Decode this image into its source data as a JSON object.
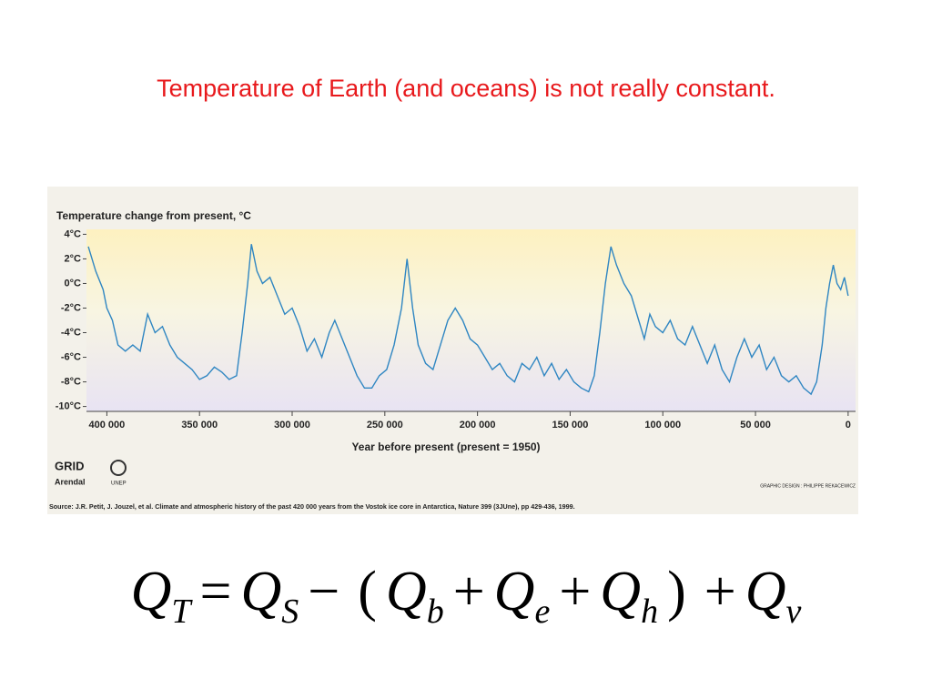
{
  "slide_title": "Temperature of Earth (and oceans) is not really constant.",
  "chart_data": {
    "type": "line",
    "y_axis_title": "Temperature change from present, °C",
    "x_axis_title": "Year before present (present = 1950)",
    "x": [
      410000,
      406000,
      402000,
      400000,
      397000,
      394000,
      390000,
      386000,
      382000,
      378000,
      374000,
      370000,
      366000,
      362000,
      358000,
      354000,
      350000,
      346000,
      342000,
      338000,
      334000,
      330000,
      327000,
      324000,
      322000,
      319000,
      316000,
      312000,
      308000,
      304000,
      300000,
      296000,
      292000,
      288000,
      284000,
      280000,
      277000,
      273000,
      269000,
      265000,
      261000,
      257000,
      253000,
      249000,
      245000,
      241000,
      238000,
      235000,
      232000,
      228000,
      224000,
      220000,
      216000,
      212000,
      208000,
      204000,
      200000,
      196000,
      192000,
      188000,
      184000,
      180000,
      176000,
      172000,
      168000,
      164000,
      160000,
      156000,
      152000,
      148000,
      144000,
      140000,
      137000,
      134000,
      131000,
      128000,
      125000,
      121000,
      117000,
      113000,
      110000,
      107000,
      104000,
      100000,
      96000,
      92000,
      88000,
      84000,
      80000,
      76000,
      72000,
      68000,
      64000,
      60000,
      56000,
      52000,
      48000,
      44000,
      40000,
      36000,
      32000,
      28000,
      24000,
      20000,
      17000,
      14000,
      12000,
      10000,
      8000,
      6000,
      4000,
      2000,
      0
    ],
    "series": [
      {
        "name": "Temperature change",
        "color": "#2f86c2",
        "values": [
          3,
          1,
          -0.5,
          -2,
          -3,
          -5,
          -5.5,
          -5,
          -5.5,
          -2.5,
          -4,
          -3.5,
          -5,
          -6,
          -6.5,
          -7,
          -7.8,
          -7.5,
          -6.8,
          -7.2,
          -7.8,
          -7.5,
          -4,
          0,
          3.2,
          1,
          0,
          0.5,
          -1,
          -2.5,
          -2,
          -3.5,
          -5.5,
          -4.5,
          -6,
          -4,
          -3,
          -4.5,
          -6,
          -7.5,
          -8.5,
          -8.5,
          -7.5,
          -7,
          -5,
          -2,
          2,
          -2,
          -5,
          -6.5,
          -7,
          -5,
          -3,
          -2,
          -3,
          -4.5,
          -5,
          -6,
          -7,
          -6.5,
          -7.5,
          -8,
          -6.5,
          -7,
          -6,
          -7.5,
          -6.5,
          -7.8,
          -7,
          -8,
          -8.5,
          -8.8,
          -7.5,
          -4,
          0,
          3,
          1.5,
          0,
          -1,
          -3,
          -4.5,
          -2.5,
          -3.5,
          -4,
          -3,
          -4.5,
          -5,
          -3.5,
          -5,
          -6.5,
          -5,
          -7,
          -8,
          -6,
          -4.5,
          -6,
          -5,
          -7,
          -6,
          -7.5,
          -8,
          -7.5,
          -8.5,
          -9,
          -8,
          -5,
          -2,
          0,
          1.5,
          0,
          -0.5,
          0.5,
          -1
        ]
      }
    ],
    "xlim": [
      411000,
      -4000
    ],
    "ylim": [
      -10.4,
      4.4
    ],
    "xticks": [
      {
        "value": 400000,
        "label": "400 000"
      },
      {
        "value": 350000,
        "label": "350 000"
      },
      {
        "value": 300000,
        "label": "300 000"
      },
      {
        "value": 250000,
        "label": "250 000"
      },
      {
        "value": 200000,
        "label": "200 000"
      },
      {
        "value": 150000,
        "label": "150 000"
      },
      {
        "value": 100000,
        "label": "100 000"
      },
      {
        "value": 50000,
        "label": "50 000"
      },
      0
    ],
    "yticks": [
      {
        "value": 4,
        "label": "4°C"
      },
      {
        "value": 2,
        "label": "2°C"
      },
      {
        "value": 0,
        "label": "0°C"
      },
      {
        "value": -2,
        "label": "-2°C"
      },
      {
        "value": -4,
        "label": "-4°C"
      },
      {
        "value": -6,
        "label": "-6°C"
      },
      {
        "value": -8,
        "label": "-8°C"
      },
      {
        "value": -10,
        "label": "-10°C"
      }
    ],
    "source": "Source: J.R. Petit, J. Jouzel, et al. Climate and atmospheric history of the past 420 000 years from the Vostok ice core in Antarctica, Nature 399 (3JUne), pp 429-436, 1999.",
    "credit": "GRAPHIC DESIGN : PHILIPPE REKACEWICZ",
    "logo": {
      "name": "GRID",
      "place": "Arendal",
      "partner": "UNEP"
    }
  },
  "equation": [
    {
      "base": "Q",
      "sub": "T"
    },
    "=",
    {
      "base": "Q",
      "sub": "S"
    },
    "−",
    "(",
    {
      "base": "Q",
      "sub": "b"
    },
    "+",
    {
      "base": "Q",
      "sub": "e"
    },
    "+",
    {
      "base": "Q",
      "sub": "h"
    },
    ")",
    "+",
    {
      "base": "Q",
      "sub": "v"
    }
  ]
}
